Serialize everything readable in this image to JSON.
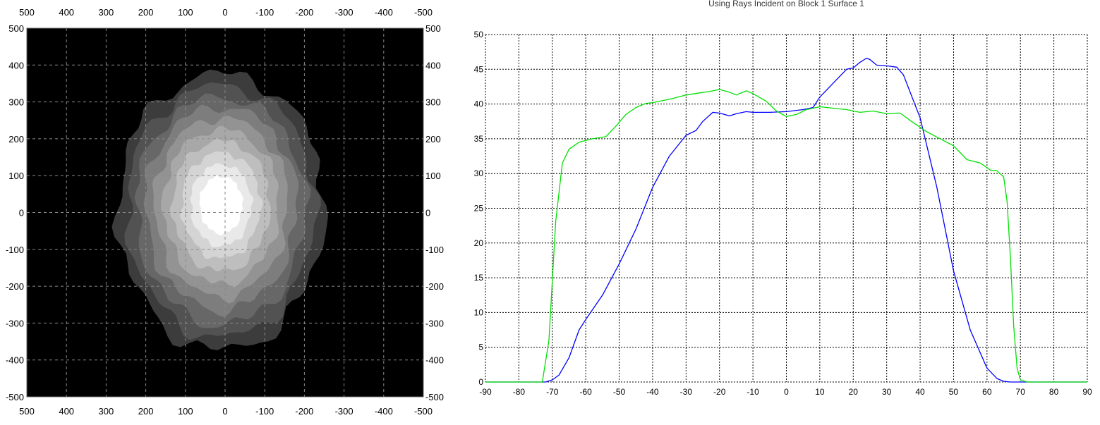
{
  "chart_data": [
    {
      "type": "heatmap",
      "title": "",
      "x_ticks_top": [
        "500",
        "400",
        "300",
        "200",
        "100",
        "0",
        "-100",
        "-200",
        "-300",
        "-400",
        "-500"
      ],
      "x_ticks_bottom": [
        "500",
        "400",
        "300",
        "200",
        "100",
        "0",
        "-100",
        "-200",
        "-300",
        "-400",
        "-500"
      ],
      "y_ticks_left": [
        "500",
        "400",
        "300",
        "200",
        "100",
        "0",
        "-100",
        "-200",
        "-300",
        "-400",
        "-500"
      ],
      "y_ticks_right": [
        "500",
        "400",
        "300",
        "200",
        "100",
        "0",
        "-100",
        "-200",
        "-300",
        "-400",
        "-500"
      ],
      "xlim": [
        500,
        -500
      ],
      "ylim": [
        -500,
        500
      ],
      "grid": true,
      "colormap": "grayscale",
      "background": "#000000",
      "spot": {
        "center_x": 10,
        "center_y": 20,
        "outer_extent_x": [
          280,
          -240
        ],
        "outer_extent_y": [
          -380,
          370
        ],
        "levels": 10
      }
    },
    {
      "type": "line",
      "title": "Using Rays Incident on Block 1 Surface 1",
      "xlabel": "",
      "ylabel": "",
      "xlim": [
        -90,
        90
      ],
      "ylim": [
        0,
        50
      ],
      "x_ticks": [
        "-90",
        "-80",
        "-70",
        "-60",
        "-50",
        "-40",
        "-30",
        "-20",
        "-10",
        "0",
        "10",
        "20",
        "30",
        "40",
        "50",
        "60",
        "70",
        "80",
        "90"
      ],
      "y_ticks": [
        "0",
        "5",
        "10",
        "15",
        "20",
        "25",
        "30",
        "35",
        "40",
        "45",
        "50"
      ],
      "grid": true,
      "series": [
        {
          "color": "#0000ff",
          "x": [
            -90,
            -80,
            -72,
            -70,
            -68,
            -65,
            -62,
            -60,
            -55,
            -50,
            -45,
            -40,
            -35,
            -30,
            -27,
            -25,
            -22,
            -20,
            -17,
            -15,
            -12,
            -10,
            -5,
            0,
            5,
            8,
            10,
            12,
            15,
            18,
            20,
            22,
            24,
            25,
            27,
            30,
            33,
            35,
            40,
            45,
            50,
            55,
            60,
            63,
            65,
            67,
            70,
            72,
            90
          ],
          "y": [
            0,
            0,
            0,
            0.3,
            1,
            3.5,
            7.5,
            9,
            12.5,
            17,
            22,
            28,
            32.5,
            35.5,
            36.2,
            37.5,
            38.8,
            38.7,
            38.3,
            38.6,
            38.9,
            38.8,
            38.8,
            38.9,
            39.2,
            39.5,
            41,
            42,
            43.5,
            45,
            45.2,
            46,
            46.6,
            46.4,
            45.6,
            45.5,
            45.3,
            44.2,
            38,
            28,
            16,
            7.5,
            2,
            0.5,
            0.1,
            0,
            0,
            0,
            0
          ]
        },
        {
          "color": "#00e000",
          "x": [
            -90,
            -80,
            -75,
            -73,
            -71,
            -69,
            -67,
            -65,
            -62,
            -58,
            -54,
            -51,
            -48,
            -45,
            -42,
            -40,
            -37,
            -34,
            -30,
            -26,
            -23,
            -20,
            -17,
            -15,
            -12,
            -10,
            -6,
            -3,
            0,
            3,
            6,
            10,
            14,
            18,
            22,
            26,
            30,
            34,
            38,
            42,
            46,
            50,
            54,
            58,
            61,
            63,
            65,
            66,
            67,
            68,
            69,
            70,
            72,
            90
          ],
          "y": [
            0,
            0,
            0,
            0,
            6,
            23,
            31.5,
            33.5,
            34.5,
            35,
            35.3,
            36.8,
            38.5,
            39.5,
            40.1,
            40.2,
            40.5,
            40.8,
            41.3,
            41.6,
            41.8,
            42.1,
            41.7,
            41.3,
            41.9,
            41.5,
            40.4,
            39,
            38.2,
            38.5,
            39.2,
            39.6,
            39.4,
            39.2,
            38.8,
            39,
            38.6,
            38.7,
            37.3,
            36,
            35,
            34,
            32,
            31.5,
            30.5,
            30.4,
            29.5,
            26,
            18,
            8,
            2,
            0.3,
            0,
            0
          ]
        }
      ]
    }
  ]
}
